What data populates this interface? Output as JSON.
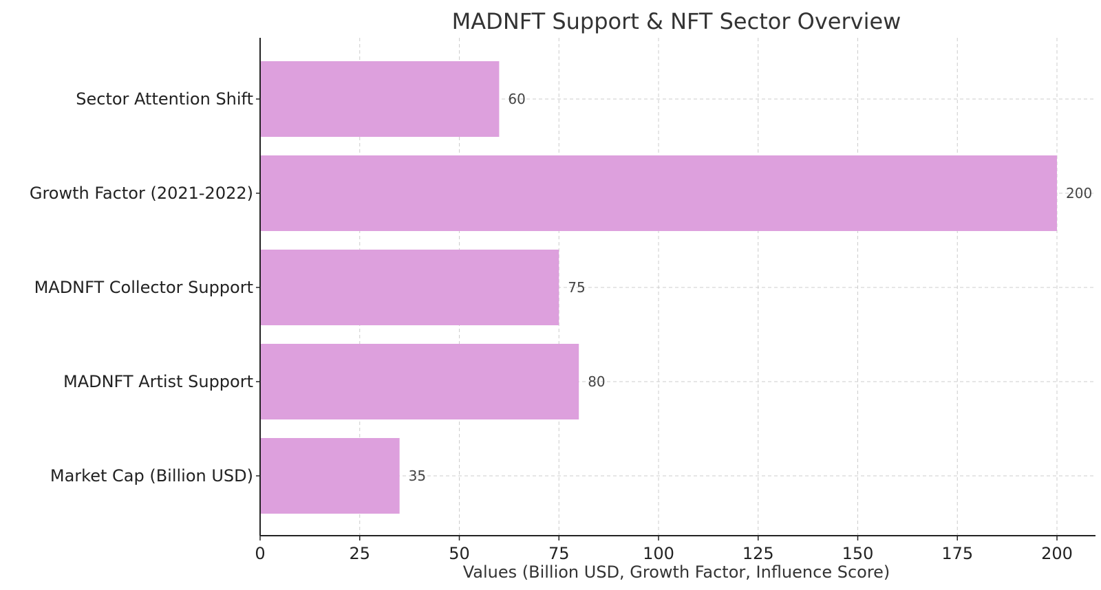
{
  "chart_data": {
    "type": "bar",
    "orientation": "horizontal",
    "title": "MADNFT Support & NFT Sector Overview",
    "xlabel": "Values (Billion USD, Growth Factor, Influence Score)",
    "ylabel": "",
    "categories": [
      "Market Cap (Billion USD)",
      "MADNFT Artist Support",
      "MADNFT Collector Support",
      "Growth Factor (2021-2022)",
      "Sector Attention Shift"
    ],
    "values": [
      35,
      80,
      75,
      200,
      60
    ],
    "data_labels": [
      "35",
      "80",
      "75",
      "200",
      "60"
    ],
    "xlim": [
      0,
      210
    ],
    "xticks": [
      0,
      25,
      50,
      75,
      100,
      125,
      150,
      175,
      200
    ],
    "xtick_labels": [
      "0",
      "25",
      "50",
      "75",
      "100",
      "125",
      "150",
      "175",
      "200"
    ],
    "grid": true,
    "bar_color": "#dda0dd",
    "legend": "none"
  }
}
